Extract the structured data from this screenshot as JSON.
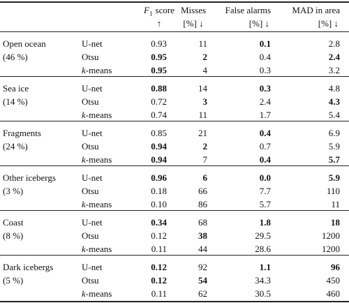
{
  "header": {
    "columns": [
      {
        "symbol": "F",
        "subscript": "1",
        "text": "score",
        "sub": "↑"
      },
      {
        "text": "Misses",
        "sub": "[%] ↓"
      },
      {
        "text": "False alarms",
        "sub": "[%] ↓"
      },
      {
        "text": "MAD in area",
        "sub": "[%] ↓"
      }
    ]
  },
  "groups": [
    {
      "name": "Open ocean",
      "share": "(46 %)",
      "rows": [
        {
          "method": "U-net",
          "values": [
            "0.93",
            "11",
            "0.1",
            "2.8"
          ],
          "bold": [
            false,
            false,
            true,
            false
          ]
        },
        {
          "method": "Otsu",
          "values": [
            "0.95",
            "2",
            "0.4",
            "2.4"
          ],
          "bold": [
            true,
            true,
            false,
            true
          ]
        },
        {
          "method": "k-means",
          "italic_initial": true,
          "values": [
            "0.95",
            "4",
            "0.3",
            "3.2"
          ],
          "bold": [
            true,
            false,
            false,
            false
          ]
        }
      ]
    },
    {
      "name": "Sea ice",
      "share": "(14 %)",
      "rows": [
        {
          "method": "U-net",
          "values": [
            "0.88",
            "14",
            "0.3",
            "4.8"
          ],
          "bold": [
            true,
            false,
            true,
            false
          ]
        },
        {
          "method": "Otsu",
          "values": [
            "0.72",
            "3",
            "2.4",
            "4.3"
          ],
          "bold": [
            false,
            true,
            false,
            true
          ]
        },
        {
          "method": "k-means",
          "italic_initial": true,
          "values": [
            "0.74",
            "11",
            "1.7",
            "5.4"
          ],
          "bold": [
            false,
            false,
            false,
            false
          ]
        }
      ]
    },
    {
      "name": "Fragments",
      "share": "(24 %)",
      "rows": [
        {
          "method": "U-net",
          "values": [
            "0.85",
            "21",
            "0.4",
            "6.9"
          ],
          "bold": [
            false,
            false,
            true,
            false
          ]
        },
        {
          "method": "Otsu",
          "values": [
            "0.94",
            "2",
            "0.7",
            "5.9"
          ],
          "bold": [
            true,
            true,
            false,
            false
          ]
        },
        {
          "method": "k-means",
          "italic_initial": true,
          "values": [
            "0.94",
            "7",
            "0.4",
            "5.7"
          ],
          "bold": [
            true,
            false,
            true,
            true
          ]
        }
      ]
    },
    {
      "name": "Other icebergs",
      "share": "(3 %)",
      "rows": [
        {
          "method": "U-net",
          "values": [
            "0.96",
            "6",
            "0.0",
            "5.9"
          ],
          "bold": [
            true,
            true,
            true,
            true
          ]
        },
        {
          "method": "Otsu",
          "values": [
            "0.18",
            "66",
            "7.7",
            "110"
          ],
          "bold": [
            false,
            false,
            false,
            false
          ]
        },
        {
          "method": "k-means",
          "italic_initial": true,
          "values": [
            "0.10",
            "86",
            "5.7",
            "11"
          ],
          "bold": [
            false,
            false,
            false,
            false
          ]
        }
      ]
    },
    {
      "name": "Coast",
      "share": "(8 %)",
      "rows": [
        {
          "method": "U-net",
          "values": [
            "0.34",
            "68",
            "1.8",
            "18"
          ],
          "bold": [
            true,
            false,
            true,
            true
          ]
        },
        {
          "method": "Otsu",
          "values": [
            "0.12",
            "38",
            "29.5",
            "1200"
          ],
          "bold": [
            false,
            true,
            false,
            false
          ]
        },
        {
          "method": "k-means",
          "italic_initial": true,
          "values": [
            "0.11",
            "44",
            "28.6",
            "1200"
          ],
          "bold": [
            false,
            false,
            false,
            false
          ]
        }
      ]
    },
    {
      "name": "Dark icebergs",
      "share": "(5 %)",
      "rows": [
        {
          "method": "U-net",
          "values": [
            "0.12",
            "92",
            "1.1",
            "96"
          ],
          "bold": [
            true,
            false,
            true,
            true
          ]
        },
        {
          "method": "Otsu",
          "values": [
            "0.12",
            "54",
            "34.3",
            "450"
          ],
          "bold": [
            true,
            true,
            false,
            false
          ]
        },
        {
          "method": "k-means",
          "italic_initial": true,
          "values": [
            "0.11",
            "62",
            "30.5",
            "460"
          ],
          "bold": [
            false,
            false,
            false,
            false
          ]
        }
      ]
    }
  ]
}
